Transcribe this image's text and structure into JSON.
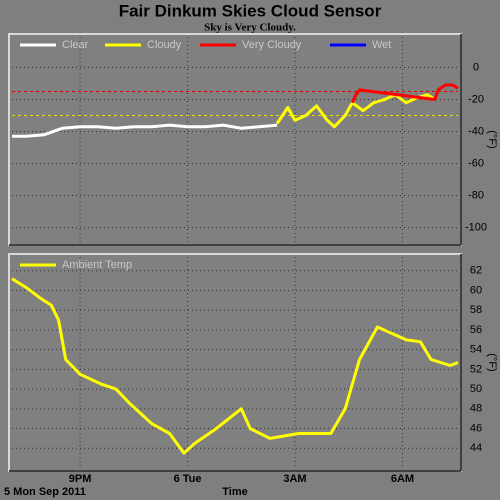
{
  "header": {
    "title": "Fair Dinkum Skies Cloud Sensor",
    "subtitle": "Sky is Very Cloudy."
  },
  "footer": {
    "date": "5 Mon Sep 2011"
  },
  "chart_data": [
    {
      "type": "line",
      "ylabel": "(°F)",
      "legend": "top-left",
      "grid": true,
      "xlim": [
        19.1,
        31.55
      ],
      "xticks": [
        21,
        24,
        27,
        30
      ],
      "ylim": [
        -109,
        19
      ],
      "yticks": [
        0,
        -20,
        -40,
        -60,
        -80,
        -100
      ],
      "thresholds": [
        {
          "value": -15,
          "color": "#e00000"
        },
        {
          "value": -30,
          "color": "#e0e000"
        }
      ],
      "series": [
        {
          "name": "Clear",
          "color": "#ffffff",
          "x": [
            19.1,
            19.5,
            20,
            20.5,
            21,
            21.5,
            22,
            22.5,
            23,
            23.5,
            24,
            24.5,
            25,
            25.5,
            26,
            26.5
          ],
          "values": [
            -43,
            -43,
            -42,
            -38,
            -37,
            -37,
            -38,
            -37,
            -37,
            -36,
            -37,
            -37,
            -36,
            -38,
            -37,
            -36
          ]
        },
        {
          "name": "Cloudy",
          "color": "#ffff00",
          "x": [
            26.5,
            26.8,
            27,
            27.3,
            27.6,
            27.9,
            28.1,
            28.4,
            28.6,
            28.9,
            29.2,
            29.5,
            29.8,
            30.1,
            30.4,
            30.7,
            30.9
          ],
          "values": [
            -35,
            -25,
            -33,
            -30,
            -24,
            -33,
            -37,
            -30,
            -22,
            -27,
            -22,
            -20,
            -17,
            -22,
            -19,
            -17,
            -20
          ]
        },
        {
          "name": "Very Cloudy",
          "color": "#ff0000",
          "x": [
            28.6,
            28.7,
            28.8,
            30.9,
            31.0,
            31.2,
            31.4,
            31.55
          ],
          "values": [
            -22,
            -17,
            -14,
            -20,
            -14,
            -11,
            -11,
            -13
          ]
        },
        {
          "name": "Wet",
          "color": "#0000ff",
          "x": [],
          "values": []
        }
      ]
    },
    {
      "type": "line",
      "ylabel": "(°F)",
      "xlabel": "Time",
      "legend": "top-left",
      "grid": true,
      "xlim": [
        19.1,
        31.55
      ],
      "xticks": [
        {
          "value": 21,
          "label": "9PM"
        },
        {
          "value": 24,
          "label": "6 Tue"
        },
        {
          "value": 27,
          "label": "3AM"
        },
        {
          "value": 30,
          "label": "6AM"
        }
      ],
      "ylim": [
        42,
        63.4
      ],
      "yticks": [
        44,
        46,
        48,
        50,
        52,
        54,
        56,
        58,
        60,
        62
      ],
      "series": [
        {
          "name": "Ambient Temp",
          "color": "#ffff00",
          "x": [
            19.1,
            19.5,
            19.9,
            20.2,
            20.4,
            20.6,
            21.0,
            21.6,
            22.0,
            22.4,
            23.0,
            23.5,
            23.9,
            24.2,
            24.8,
            25.5,
            25.75,
            26.3,
            27.1,
            28.0,
            28.4,
            28.8,
            29.3,
            30.1,
            30.5,
            30.8,
            31.33,
            31.55
          ],
          "values": [
            61.2,
            60.3,
            59.2,
            58.5,
            57,
            53,
            51.5,
            50.5,
            50,
            48.5,
            46.5,
            45.5,
            43.5,
            44.5,
            46,
            48,
            46,
            45,
            45.5,
            45.5,
            48,
            53,
            56.3,
            55,
            54.8,
            53,
            52.4,
            52.7
          ]
        }
      ]
    }
  ]
}
